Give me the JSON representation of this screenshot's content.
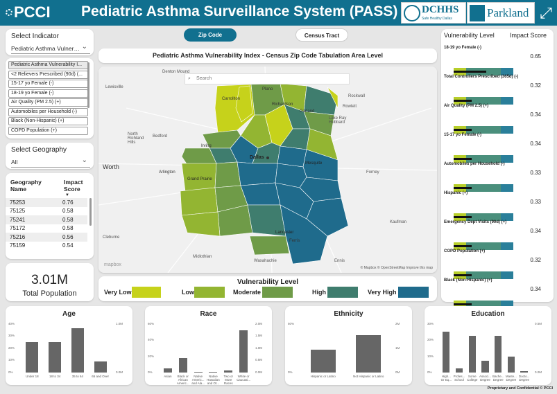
{
  "header": {
    "logo": "PCCI",
    "title": "Pediatric Asthma Surveillance System (PASS)",
    "dchhs": "DCHHS",
    "dchhs_tag": "Safe Healthy Dallas",
    "parkland": "Parkland"
  },
  "indicator": {
    "label": "Select Indicator",
    "value": "Pediatric Asthma Vulner…",
    "items": [
      "Pediatric Asthma Vulnerability I...",
      "<2 Relievers Prescribed (90d) (...",
      "15-17 yo Female (-)",
      "18-19 yo Female (-)",
      "Air Quality (PM 2.5) (+)",
      "Automobiles per Household (-)",
      "Black (Non-Hispanic) (+)",
      "COPD Population (+)"
    ]
  },
  "geography": {
    "label": "Select Geography",
    "value": "All"
  },
  "geo_table": {
    "col1": "Geography Name",
    "col2": "Impact Score",
    "rows": [
      [
        "75253",
        "0.76"
      ],
      [
        "75125",
        "0.58"
      ],
      [
        "75241",
        "0.58"
      ],
      [
        "75172",
        "0.58"
      ],
      [
        "75216",
        "0.56"
      ],
      [
        "75159",
        "0.54"
      ]
    ]
  },
  "population": {
    "value": "3.01M",
    "label": "Total Population"
  },
  "toggle": {
    "zip": "Zip Code",
    "census": "Census Tract"
  },
  "map": {
    "title": "Pediatric Asthma Vulnerability Index - Census Zip Code Tabulation Area Level",
    "search_placeholder": "Search",
    "place_labels": [
      "Denton Mound",
      "Lewisville",
      "Plano",
      "Carrollton",
      "Richardson",
      "Garland",
      "Rowlett",
      "Lake Ray Hubbard",
      "North Richland Hills",
      "Bedford",
      "Worth",
      "Arlington",
      "Dallas",
      "Mesquite",
      "Grand Prairie",
      "Lancaster",
      "Forney",
      "Kaufman",
      "Midlothian",
      "Cleburne",
      "Ferris",
      "Waxahachie",
      "Ennis",
      "Rockwall",
      "Irving"
    ],
    "attribution": "© Mapbox © OpenStreetMap  Improve this map",
    "mapbox": "mapbox"
  },
  "legend": {
    "title": "Vulnerability Level",
    "levels": [
      {
        "label": "Very Low",
        "color": "#c6d21b"
      },
      {
        "label": "Low",
        "color": "#93b532"
      },
      {
        "label": "Moderate",
        "color": "#6f9b48"
      },
      {
        "label": "High",
        "color": "#3f7d6e"
      },
      {
        "label": "Very High",
        "color": "#1f6b8c"
      }
    ]
  },
  "vulnerability": {
    "header1": "Vulnerability Level",
    "header2": "Impact Score",
    "rows": [
      {
        "label": "18-19 yo Female (-)",
        "value": "0.65",
        "black_frac": 0.55
      },
      {
        "label": "Total Controllers Prescribed (365d) (-)",
        "value": "0.32",
        "black_frac": 0.3
      },
      {
        "label": "Air Quality (PM 2.5) (+)",
        "value": "0.34",
        "black_frac": 0.3
      },
      {
        "label": "15-17 yo Female (-)",
        "value": "0.34",
        "black_frac": 0.3
      },
      {
        "label": "Automobiles per Household (-)",
        "value": "0.33",
        "black_frac": 0.3
      },
      {
        "label": "Hispanic (+)",
        "value": "0.33",
        "black_frac": 0.3
      },
      {
        "label": "Emergency Dept Visits (90d) (+)",
        "value": "0.34",
        "black_frac": 0.3
      },
      {
        "label": "COPD Population (+)",
        "value": "0.32",
        "black_frac": 0.3
      },
      {
        "label": "Black (Non-Hispanic) (+)",
        "value": "0.34",
        "black_frac": 0.3
      }
    ]
  },
  "footer": "Proprietary and Confidential © PCCI",
  "colors": {
    "header": "#11708f",
    "bar": "#666666"
  },
  "chart_data": [
    {
      "type": "bar",
      "title": "Age",
      "categories": [
        "Under 18",
        "18 to 34",
        "35 to 64",
        "65 and Over"
      ],
      "values": [
        27,
        27,
        39,
        10
      ],
      "y_left_ticks": [
        "0%",
        "10%",
        "20%",
        "30%",
        "40%"
      ],
      "y_right_ticks": [
        "0.0M",
        "1.0M"
      ],
      "ylim": [
        0,
        45
      ]
    },
    {
      "type": "bar",
      "title": "Race",
      "categories": [
        "Asian",
        "Black or African Americ...",
        "Native Americ... and Ala...",
        "Native Hawaiian and Ot...",
        "Two or More Races",
        "White or Caucasi..."
      ],
      "values": [
        7,
        23,
        1,
        1,
        3,
        66
      ],
      "y_left_ticks": [
        "0%",
        "20%",
        "40%",
        "60%"
      ],
      "y_right_ticks": [
        "0.0M",
        "0.5M",
        "1.0M",
        "1.5M",
        "2.0M"
      ],
      "ylim": [
        0,
        80
      ]
    },
    {
      "type": "bar",
      "title": "Ethnicity",
      "categories": [
        "Hispanic or Latino",
        "Not Hispanic or Latino"
      ],
      "values": [
        40,
        66
      ],
      "y_left_ticks": [
        "0%",
        "50%"
      ],
      "y_right_ticks": [
        "0M",
        "1M",
        "2M"
      ],
      "ylim": [
        0,
        90
      ]
    },
    {
      "type": "bar",
      "title": "Education",
      "categories": [
        "High... Or Eq...",
        "Profes... School",
        "Some College",
        "Associ... Degree",
        "Bache... Degree",
        "Maste... Degree",
        "Docto... Degree"
      ],
      "values": [
        28,
        3,
        25,
        8,
        25,
        11,
        1
      ],
      "y_left_ticks": [
        "0%",
        "10%",
        "20%",
        "30%"
      ],
      "y_right_ticks": [
        "0.0M",
        "0.5M"
      ],
      "ylim": [
        0,
        35
      ]
    }
  ]
}
